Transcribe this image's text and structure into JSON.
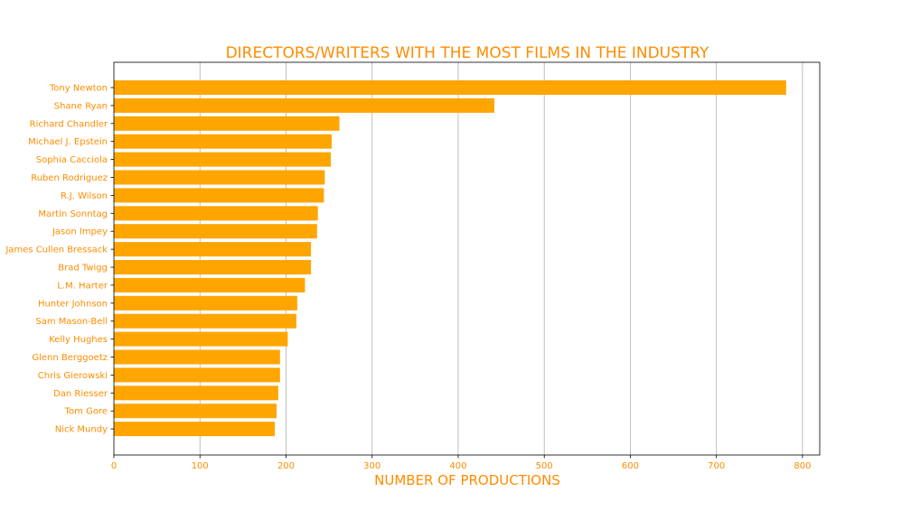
{
  "chart_data": {
    "type": "bar",
    "orientation": "horizontal",
    "title": "DIRECTORS/WRITERS WITH THE MOST FILMS IN THE INDUSTRY",
    "xlabel": "NUMBER OF PRODUCTIONS",
    "ylabel": "",
    "categories": [
      "Tony Newton",
      "Shane Ryan",
      "Richard Chandler",
      "Michael J. Epstein",
      "Sophia Cacciola",
      "Ruben Rodriguez",
      "R.J. Wilson",
      "Martin Sonntag",
      "Jason Impey",
      "James Cullen Bressack",
      "Brad Twigg",
      "L.M. Harter",
      "Hunter Johnson",
      "Sam Mason-Bell",
      "Kelly Hughes",
      "Glenn Berggoetz",
      "Chris Gierowski",
      "Dan Riesser",
      "Tom Gore",
      "Nick Mundy"
    ],
    "values": [
      781,
      442,
      262,
      253,
      252,
      245,
      244,
      237,
      236,
      229,
      229,
      222,
      213,
      212,
      202,
      193,
      193,
      191,
      189,
      187
    ],
    "xlim": [
      0,
      820
    ],
    "xticks": [
      0,
      100,
      200,
      300,
      400,
      500,
      600,
      700,
      800
    ],
    "grid": "x",
    "colors": {
      "bar": "#ffa500",
      "text": "#ff8c00",
      "grid": "#b0b0b0",
      "axis": "#000000"
    }
  }
}
